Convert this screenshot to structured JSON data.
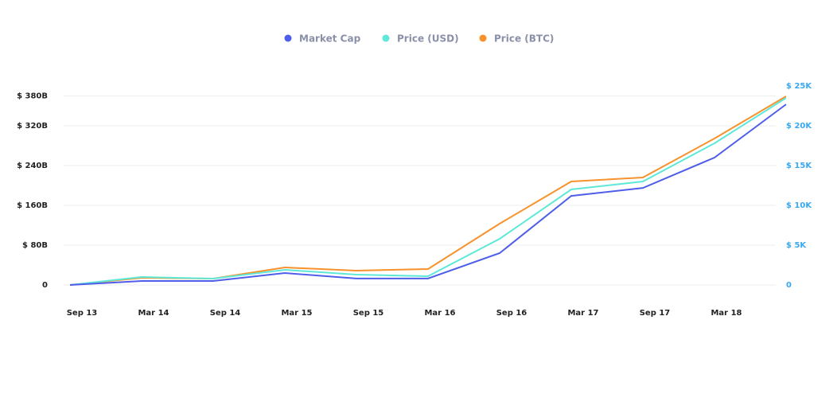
{
  "chart_data": {
    "type": "line",
    "categories": [
      "Sep 13",
      "Mar 14",
      "Sep 14",
      "Mar 15",
      "Sep 15",
      "Mar 16",
      "Sep 16",
      "Mar 17",
      "Sep 17",
      "Mar 18",
      null
    ],
    "series": [
      {
        "name": "Market Cap",
        "color": "#4f5ee8",
        "values": [
          0,
          8,
          8,
          24,
          13,
          13,
          64,
          179,
          195,
          256,
          363
        ]
      },
      {
        "name": "Price (USD)",
        "color": "#5de8d8",
        "axis": "y2",
        "values": [
          0,
          1000,
          800,
          1900,
          1300,
          1100,
          5800,
          12000,
          13000,
          17800,
          23500
        ]
      },
      {
        "name": "Price (BTC)",
        "color": "#f7922d",
        "axis": "y2",
        "values": [
          0,
          900,
          800,
          2200,
          1800,
          2000,
          7700,
          13000,
          13500,
          18400,
          23700
        ]
      }
    ],
    "ylim": [
      0,
      400
    ],
    "yticks": [
      {
        "value": 0,
        "label": "0"
      },
      {
        "value": 80,
        "label": "$ 80B"
      },
      {
        "value": 160,
        "label": "$ 160B"
      },
      {
        "value": 240,
        "label": "$ 240B"
      },
      {
        "value": 320,
        "label": "$ 320B"
      },
      {
        "value": 380,
        "label": "$ 380B"
      }
    ],
    "y2lim": [
      0,
      25000
    ],
    "y2ticks": [
      {
        "value": 0,
        "label": "0"
      },
      {
        "value": 5000,
        "label": "$ 5K"
      },
      {
        "value": 10000,
        "label": "$ 10K"
      },
      {
        "value": 15000,
        "label": "$ 15K"
      },
      {
        "value": 20000,
        "label": "$ 20K"
      },
      {
        "value": 25000,
        "label": "$ 25K"
      }
    ],
    "grid": true
  }
}
